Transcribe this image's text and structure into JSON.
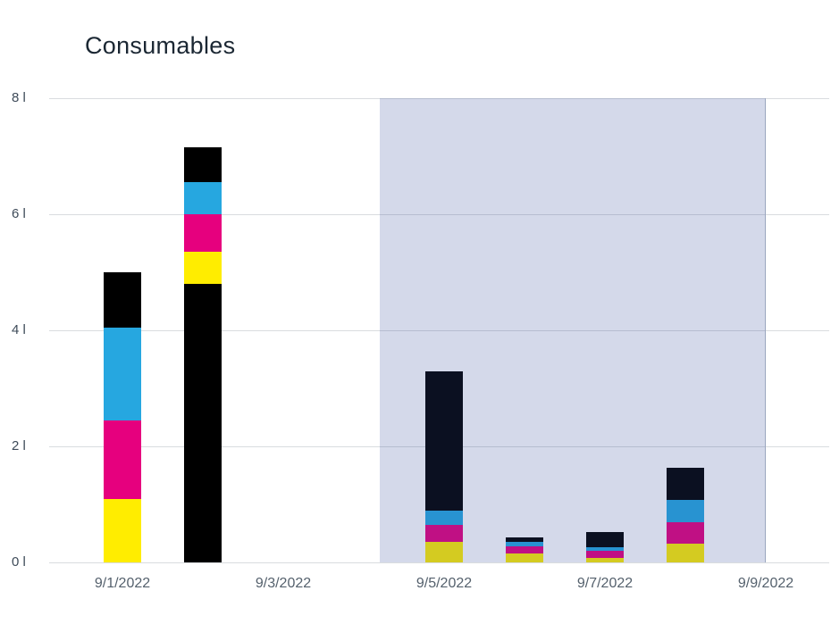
{
  "chart_data": {
    "type": "bar",
    "stacked": true,
    "title": "Consumables",
    "unit": "liters",
    "ylim": [
      0,
      8
    ],
    "grid": true,
    "legend": "none",
    "yticks": [
      {
        "label": "0 l",
        "value": 0
      },
      {
        "label": "2 l",
        "value": 2
      },
      {
        "label": "4 l",
        "value": 4
      },
      {
        "label": "6 l",
        "value": 6
      },
      {
        "label": "8 l",
        "value": 8
      }
    ],
    "xticks": [
      {
        "label": "9/1/2022",
        "day": 1
      },
      {
        "label": "9/3/2022",
        "day": 3
      },
      {
        "label": "9/5/2022",
        "day": 5
      },
      {
        "label": "9/7/2022",
        "day": 7
      },
      {
        "label": "9/9/2022",
        "day": 9
      }
    ],
    "series_colors": {
      "yellow": "#ffed00",
      "magenta": "#e6007e",
      "cyan": "#26a7e0",
      "black": "#000000"
    },
    "bars": [
      {
        "date": "9/1/2022",
        "day": 1,
        "total": 5.0,
        "segments": [
          {
            "series": "yellow",
            "value": 1.1
          },
          {
            "series": "magenta",
            "value": 1.35
          },
          {
            "series": "cyan",
            "value": 1.6
          },
          {
            "series": "black",
            "value": 0.95
          }
        ]
      },
      {
        "date": "9/2/2022",
        "day": 2,
        "total": 7.15,
        "segments": [
          {
            "series": "black",
            "value": 4.8
          },
          {
            "series": "yellow",
            "value": 0.55
          },
          {
            "series": "magenta",
            "value": 0.65
          },
          {
            "series": "cyan",
            "value": 0.55
          },
          {
            "series": "black",
            "value": 0.6
          }
        ]
      },
      {
        "date": "9/5/2022",
        "day": 5,
        "total": 3.3,
        "segments": [
          {
            "series": "yellow",
            "value": 0.35
          },
          {
            "series": "magenta",
            "value": 0.3
          },
          {
            "series": "cyan",
            "value": 0.25
          },
          {
            "series": "black",
            "value": 2.4
          }
        ]
      },
      {
        "date": "9/6/2022",
        "day": 6,
        "total": 0.43,
        "segments": [
          {
            "series": "yellow",
            "value": 0.15
          },
          {
            "series": "magenta",
            "value": 0.12
          },
          {
            "series": "cyan",
            "value": 0.08
          },
          {
            "series": "black",
            "value": 0.08
          }
        ]
      },
      {
        "date": "9/7/2022",
        "day": 7,
        "total": 0.52,
        "segments": [
          {
            "series": "yellow",
            "value": 0.08
          },
          {
            "series": "magenta",
            "value": 0.12
          },
          {
            "series": "cyan",
            "value": 0.06
          },
          {
            "series": "black",
            "value": 0.26
          }
        ]
      },
      {
        "date": "9/8/2022",
        "day": 8,
        "total": 1.63,
        "segments": [
          {
            "series": "yellow",
            "value": 0.32
          },
          {
            "series": "magenta",
            "value": 0.38
          },
          {
            "series": "cyan",
            "value": 0.38
          },
          {
            "series": "black",
            "value": 0.55
          }
        ]
      }
    ],
    "highlight_region": {
      "from": "9/4/2022",
      "to": "9/9/2022"
    }
  },
  "colors": {
    "background": "#ffffff",
    "gridline": "#d9dcdf",
    "ytick_text": "#3e4b59",
    "xtick_text": "#55616d",
    "title_text": "#1b2733",
    "highlight_fill": "rgba(52,74,158,0.21)",
    "highlight_border": "#9aa6bf"
  }
}
